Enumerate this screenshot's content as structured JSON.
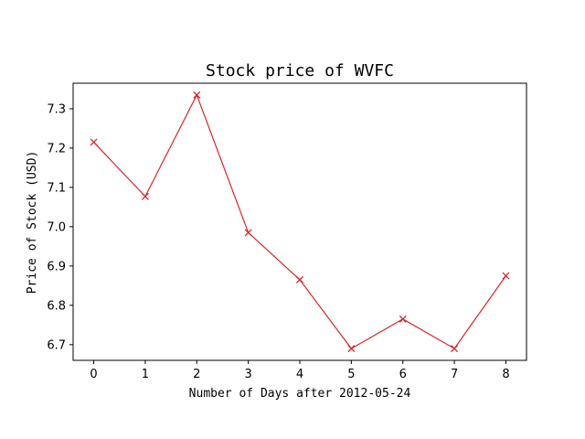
{
  "chart_data": {
    "type": "line",
    "title": "Stock price of WVFC",
    "xlabel": "Number of Days after 2012-05-24",
    "ylabel": "Price of Stock (USD)",
    "x": [
      0,
      1,
      2,
      3,
      4,
      5,
      6,
      7,
      8
    ],
    "xticks": [
      "0",
      "1",
      "2",
      "3",
      "4",
      "5",
      "6",
      "7",
      "8"
    ],
    "yticks": [
      "6.7",
      "6.8",
      "6.9",
      "7.0",
      "7.1",
      "7.2",
      "7.3"
    ],
    "xlim": [
      -0.4,
      8.4
    ],
    "ylim": [
      6.66,
      7.365
    ],
    "grid": false,
    "series": [
      {
        "values": [
          7.215,
          7.077,
          7.335,
          6.985,
          6.865,
          6.69,
          6.765,
          6.69,
          6.875
        ],
        "color": "#d62728",
        "marker": "x"
      }
    ]
  }
}
